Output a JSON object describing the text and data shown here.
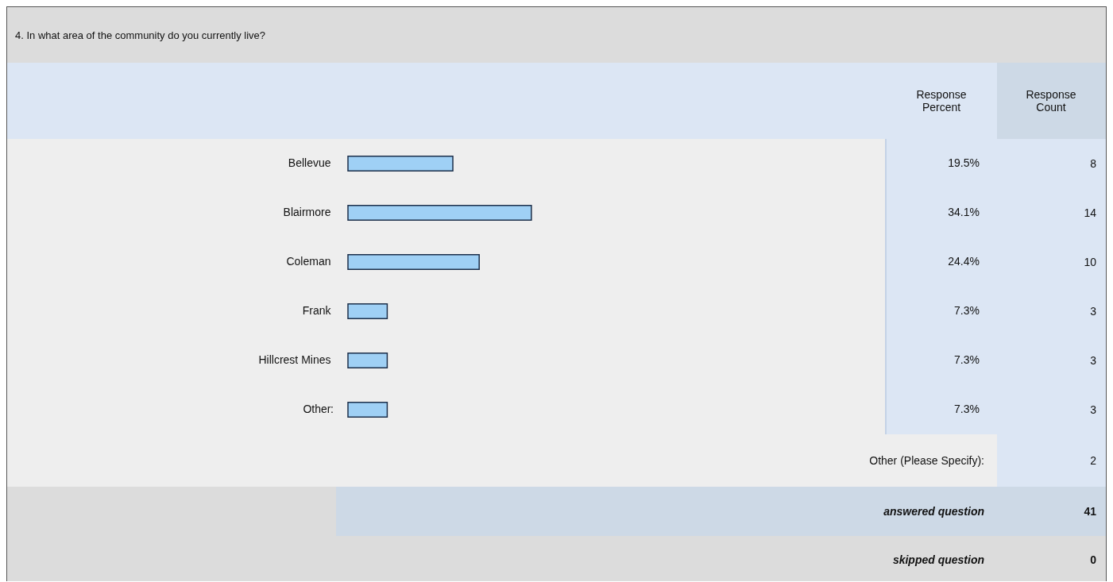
{
  "chart_data": {
    "type": "bar",
    "orientation": "horizontal",
    "title": "4. In what area of the community do you currently live?",
    "categories": [
      "Bellevue",
      "Blairmore",
      "Coleman",
      "Frank",
      "Hillcrest Mines",
      "Other"
    ],
    "values": [
      19.5,
      34.1,
      24.4,
      7.3,
      7.3,
      7.3
    ],
    "value_labels": [
      "19.5%",
      "34.1%",
      "24.4%",
      "7.3%",
      "7.3%",
      "7.3%"
    ],
    "color": "#9fd0f5",
    "xlim": [
      0,
      100
    ],
    "annotations": [
      "Response Percent",
      "Response Count",
      "8",
      "14",
      "10",
      "3",
      "3",
      "3",
      "Other (Please Specify):",
      "2",
      "answered question",
      "41",
      "skipped question",
      "0",
      ":"
    ]
  }
}
